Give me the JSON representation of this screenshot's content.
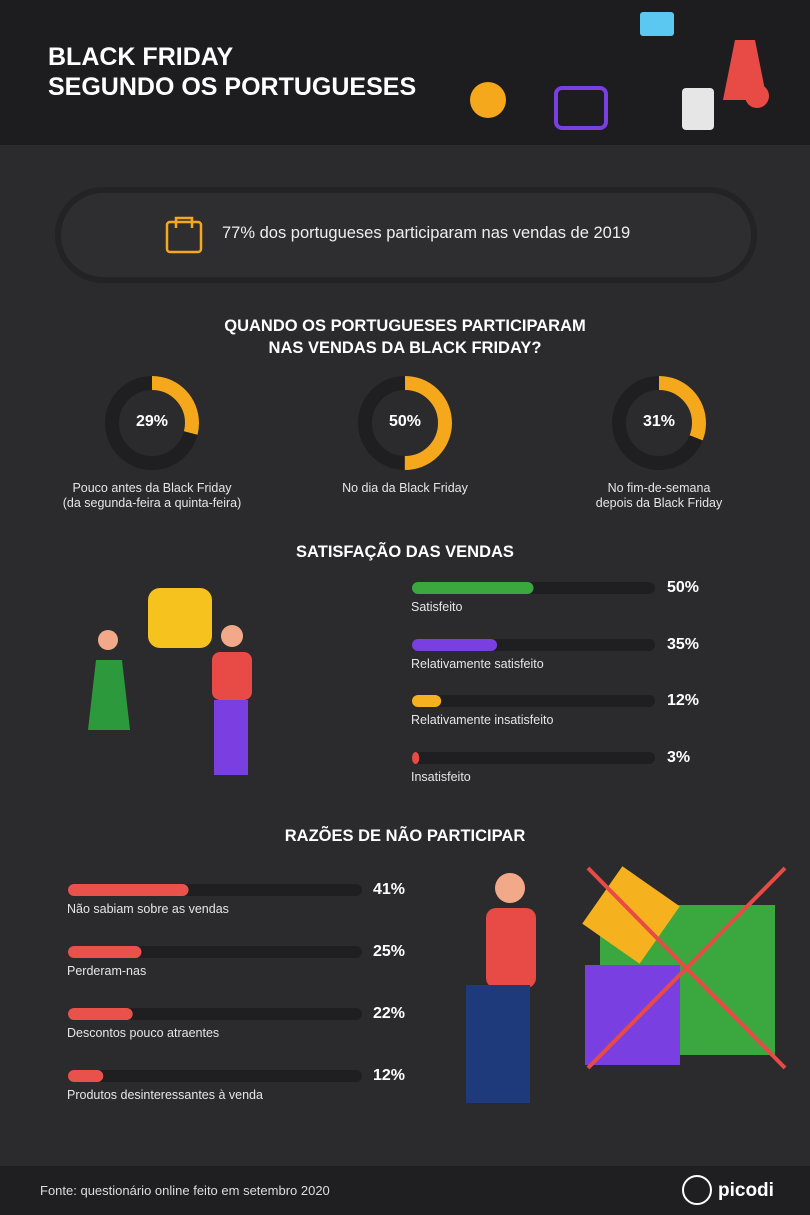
{
  "header": {
    "title_line_1": "BLACK FRIDAY",
    "title_line_2": "SEGUNDO OS PORTUGUESES"
  },
  "highlight": "77% dos portugueses participaram nas vendas de 2019",
  "chart_data": [
    {
      "type": "donut",
      "title": "QUANDO OS PORTUGUESES PARTICIPARAM NAS VENDAS DA BLACK FRIDAY?",
      "categories": [
        "Pouco antes da Black Friday (da segunda-feira a quinta-feira)",
        "No dia da Black Friday",
        "No fim-de-semana depois da Black Friday"
      ],
      "values": [
        29,
        50,
        31
      ],
      "value_labels": [
        "29%",
        "50%",
        "31%"
      ],
      "color": "#f6a81c",
      "track_color": "#1f1f21"
    },
    {
      "type": "hbar",
      "title": "SATISFAÇÃO DAS VENDAS",
      "categories": [
        "Satisfeito",
        "Relativamente satisfeito",
        "Relativamente insatisfeito",
        "Insatisfeito"
      ],
      "values": [
        50,
        35,
        12,
        3
      ],
      "value_labels": [
        "50%",
        "35%",
        "12%",
        "3%"
      ],
      "colors": [
        "#3aa83f",
        "#7a3fe0",
        "#f6b21e",
        "#e84a45"
      ],
      "xlim": [
        0,
        100
      ]
    },
    {
      "type": "hbar",
      "title": "RAZÕES DE NÃO PARTICIPAR",
      "categories": [
        "Não sabiam sobre as vendas",
        "Perderam-nas",
        "Descontos pouco atraentes",
        "Produtos desinteressantes à venda"
      ],
      "values": [
        41,
        25,
        22,
        12
      ],
      "value_labels": [
        "41%",
        "25%",
        "22%",
        "12%"
      ],
      "colors": [
        "#e8524a",
        "#e8524a",
        "#e8524a",
        "#e8524a"
      ],
      "xlim": [
        0,
        100
      ]
    }
  ],
  "footer": {
    "source": "Fonte: questionário online feito em setembro 2020",
    "brand": "picodi"
  }
}
